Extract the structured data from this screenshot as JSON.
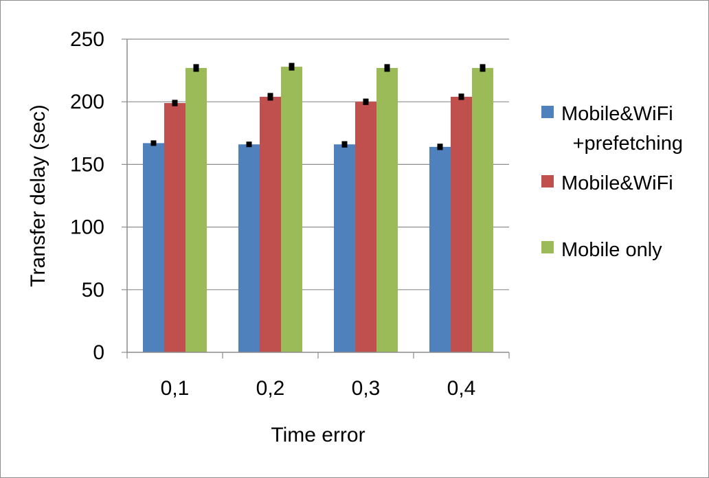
{
  "chart_data": {
    "type": "bar",
    "title": "",
    "xlabel": "Time error",
    "ylabel": "Transfer delay (sec)",
    "categories": [
      "0,1",
      "0,2",
      "0,3",
      "0,4"
    ],
    "ylim": [
      0,
      250
    ],
    "yticks": [
      0,
      50,
      100,
      150,
      200,
      250
    ],
    "grid": true,
    "legend_position": "right",
    "series": [
      {
        "name": "Mobile&WiFi +prefetching",
        "legend_lines": [
          "Mobile&WiFi",
          "+prefetching"
        ],
        "color": "#4f81bd",
        "values": [
          167,
          166,
          166,
          164
        ],
        "errors": [
          1.5,
          1.5,
          2,
          2
        ]
      },
      {
        "name": "Mobile&WiFi",
        "legend_lines": [
          "Mobile&WiFi"
        ],
        "color": "#c0504d",
        "values": [
          199,
          204,
          200,
          204
        ],
        "errors": [
          2,
          2.5,
          2,
          2
        ]
      },
      {
        "name": "Mobile only",
        "legend_lines": [
          "Mobile only"
        ],
        "color": "#9bbb59",
        "values": [
          227,
          228,
          227,
          227
        ],
        "errors": [
          2.5,
          2.5,
          2.5,
          2.5
        ]
      }
    ]
  }
}
